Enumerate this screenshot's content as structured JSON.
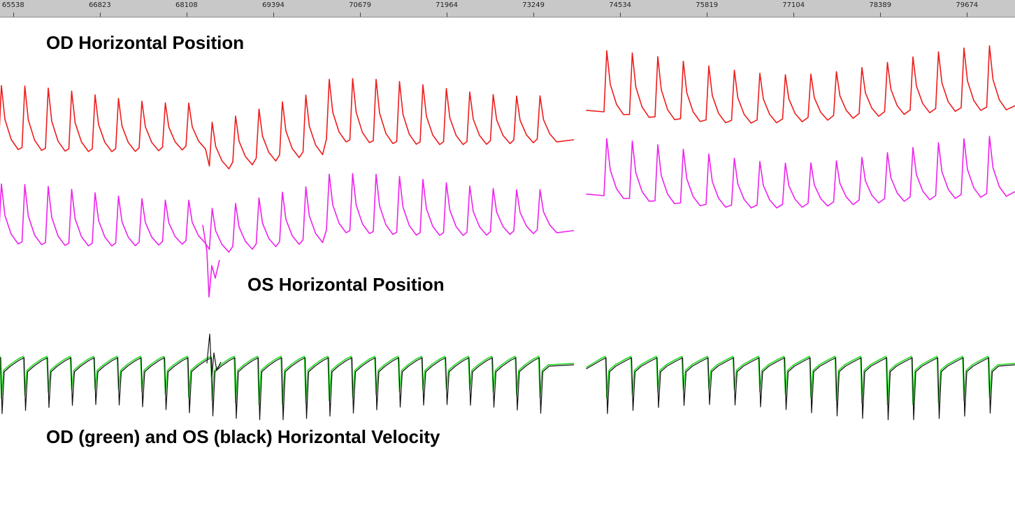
{
  "chart_data": {
    "type": "line",
    "title": "",
    "xaxis": {
      "ticks": [
        "65538",
        "66823",
        "68108",
        "69394",
        "70679",
        "71964",
        "73249",
        "74534",
        "75819",
        "77104",
        "78389",
        "79674"
      ],
      "range": [
        65343,
        80386
      ]
    },
    "grid": false,
    "panels": [
      {
        "label": "OD Horizontal Position",
        "series": [
          {
            "color": "#ee1c1c"
          }
        ]
      },
      {
        "label": "OS Horizontal Position",
        "series": [
          {
            "color": "#ee22ee"
          }
        ]
      },
      {
        "label": "OD (green) and OS (black) Horizontal Velocity",
        "series": [
          {
            "color": "#22dd22"
          },
          {
            "color": "#111111"
          }
        ]
      }
    ],
    "gap": [
      73850,
      74030
    ]
  }
}
